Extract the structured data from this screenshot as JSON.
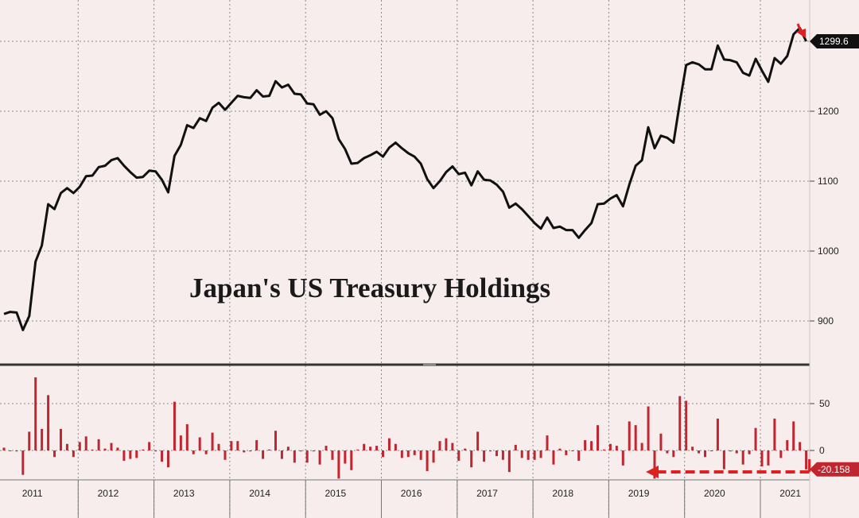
{
  "chart_data": [
    {
      "type": "line",
      "title": "Japan's US Treasury Holdings",
      "ylim": [
        870,
        1330
      ],
      "yticks": [
        900,
        1000,
        1100,
        1200
      ],
      "last_value_label": "1299.6",
      "colors": {
        "line": "#111111",
        "tag_background": "#111111",
        "arrow": "#e02020"
      },
      "grid": true,
      "points": [
        [
          "2011-01",
          910
        ],
        [
          "2011-02",
          913
        ],
        [
          "2011-03",
          912
        ],
        [
          "2011-04",
          887
        ],
        [
          "2011-05",
          907
        ],
        [
          "2011-06",
          985
        ],
        [
          "2011-07",
          1008
        ],
        [
          "2011-08",
          1067
        ],
        [
          "2011-09",
          1060
        ],
        [
          "2011-10",
          1083
        ],
        [
          "2011-11",
          1090
        ],
        [
          "2011-12",
          1083
        ],
        [
          "2012-01",
          1092
        ],
        [
          "2012-02",
          1107
        ],
        [
          "2012-03",
          1108
        ],
        [
          "2012-04",
          1120
        ],
        [
          "2012-05",
          1122
        ],
        [
          "2012-06",
          1130
        ],
        [
          "2012-07",
          1133
        ],
        [
          "2012-08",
          1122
        ],
        [
          "2012-09",
          1113
        ],
        [
          "2012-10",
          1105
        ],
        [
          "2012-11",
          1106
        ],
        [
          "2012-12",
          1115
        ],
        [
          "2013-01",
          1114
        ],
        [
          "2013-02",
          1102
        ],
        [
          "2013-03",
          1084
        ],
        [
          "2013-04",
          1136
        ],
        [
          "2013-05",
          1152
        ],
        [
          "2013-06",
          1180
        ],
        [
          "2013-07",
          1176
        ],
        [
          "2013-08",
          1190
        ],
        [
          "2013-09",
          1186
        ],
        [
          "2013-10",
          1205
        ],
        [
          "2013-11",
          1212
        ],
        [
          "2013-12",
          1202
        ],
        [
          "2014-01",
          1212
        ],
        [
          "2014-02",
          1222
        ],
        [
          "2014-03",
          1220
        ],
        [
          "2014-04",
          1219
        ],
        [
          "2014-05",
          1230
        ],
        [
          "2014-06",
          1221
        ],
        [
          "2014-07",
          1222
        ],
        [
          "2014-08",
          1243
        ],
        [
          "2014-09",
          1234
        ],
        [
          "2014-10",
          1238
        ],
        [
          "2014-11",
          1225
        ],
        [
          "2014-12",
          1224
        ],
        [
          "2015-01",
          1211
        ],
        [
          "2015-02",
          1210
        ],
        [
          "2015-03",
          1195
        ],
        [
          "2015-04",
          1200
        ],
        [
          "2015-05",
          1190
        ],
        [
          "2015-06",
          1160
        ],
        [
          "2015-07",
          1146
        ],
        [
          "2015-08",
          1125
        ],
        [
          "2015-09",
          1126
        ],
        [
          "2015-10",
          1133
        ],
        [
          "2015-11",
          1137
        ],
        [
          "2015-12",
          1142
        ],
        [
          "2016-01",
          1135
        ],
        [
          "2016-02",
          1148
        ],
        [
          "2016-03",
          1155
        ],
        [
          "2016-04",
          1147
        ],
        [
          "2016-05",
          1140
        ],
        [
          "2016-06",
          1135
        ],
        [
          "2016-07",
          1125
        ],
        [
          "2016-08",
          1103
        ],
        [
          "2016-09",
          1090
        ],
        [
          "2016-10",
          1100
        ],
        [
          "2016-11",
          1113
        ],
        [
          "2016-12",
          1121
        ],
        [
          "2017-01",
          1110
        ],
        [
          "2017-02",
          1112
        ],
        [
          "2017-03",
          1094
        ],
        [
          "2017-04",
          1114
        ],
        [
          "2017-05",
          1102
        ],
        [
          "2017-06",
          1101
        ],
        [
          "2017-07",
          1095
        ],
        [
          "2017-08",
          1085
        ],
        [
          "2017-09",
          1062
        ],
        [
          "2017-10",
          1068
        ],
        [
          "2017-11",
          1060
        ],
        [
          "2017-12",
          1050
        ],
        [
          "2018-01",
          1040
        ],
        [
          "2018-02",
          1032
        ],
        [
          "2018-03",
          1048
        ],
        [
          "2018-04",
          1033
        ],
        [
          "2018-05",
          1035
        ],
        [
          "2018-06",
          1030
        ],
        [
          "2018-07",
          1030
        ],
        [
          "2018-08",
          1019
        ],
        [
          "2018-09",
          1030
        ],
        [
          "2018-10",
          1040
        ],
        [
          "2018-11",
          1067
        ],
        [
          "2018-12",
          1068
        ],
        [
          "2019-01",
          1075
        ],
        [
          "2019-02",
          1080
        ],
        [
          "2019-03",
          1064
        ],
        [
          "2019-04",
          1095
        ],
        [
          "2019-05",
          1122
        ],
        [
          "2019-06",
          1130
        ],
        [
          "2019-07",
          1177
        ],
        [
          "2019-08",
          1147
        ],
        [
          "2019-09",
          1165
        ],
        [
          "2019-10",
          1162
        ],
        [
          "2019-11",
          1155
        ],
        [
          "2019-12",
          1213
        ],
        [
          "2020-01",
          1266
        ],
        [
          "2020-02",
          1270
        ],
        [
          "2020-03",
          1267
        ],
        [
          "2020-04",
          1260
        ],
        [
          "2020-05",
          1260
        ],
        [
          "2020-06",
          1294
        ],
        [
          "2020-07",
          1274
        ],
        [
          "2020-08",
          1273
        ],
        [
          "2020-09",
          1270
        ],
        [
          "2020-10",
          1255
        ],
        [
          "2020-11",
          1251
        ],
        [
          "2020-12",
          1275
        ],
        [
          "2021-01",
          1258
        ],
        [
          "2021-02",
          1242
        ],
        [
          "2021-03",
          1276
        ],
        [
          "2021-04",
          1268
        ],
        [
          "2021-05",
          1279
        ],
        [
          "2021-06",
          1310
        ],
        [
          "2021-07",
          1319
        ],
        [
          "2021-08",
          1300
        ]
      ]
    },
    {
      "type": "bar",
      "ylim": [
        -40,
        80
      ],
      "yticks": [
        50,
        0
      ],
      "last_value_label": "-20.158",
      "colors": {
        "bars": "#c0262f",
        "tag_background": "#c0262f",
        "highlight": "#e02020"
      },
      "grid": true,
      "highlight": "dashed arrow pointing left under the 2019–2021 bars",
      "points": [
        [
          "2011-01",
          3
        ],
        [
          "2011-02",
          0
        ],
        [
          "2011-03",
          -1
        ],
        [
          "2011-04",
          -26
        ],
        [
          "2011-05",
          20
        ],
        [
          "2011-06",
          78
        ],
        [
          "2011-07",
          23
        ],
        [
          "2011-08",
          59
        ],
        [
          "2011-09",
          -7
        ],
        [
          "2011-10",
          23
        ],
        [
          "2011-11",
          7
        ],
        [
          "2011-12",
          -7
        ],
        [
          "2012-01",
          9
        ],
        [
          "2012-02",
          15
        ],
        [
          "2012-03",
          1
        ],
        [
          "2012-04",
          12
        ],
        [
          "2012-05",
          2
        ],
        [
          "2012-06",
          8
        ],
        [
          "2012-07",
          3
        ],
        [
          "2012-08",
          -11
        ],
        [
          "2012-09",
          -9
        ],
        [
          "2012-10",
          -8
        ],
        [
          "2012-11",
          1
        ],
        [
          "2012-12",
          9
        ],
        [
          "2013-01",
          -1
        ],
        [
          "2013-02",
          -12
        ],
        [
          "2013-03",
          -18
        ],
        [
          "2013-04",
          52
        ],
        [
          "2013-05",
          16
        ],
        [
          "2013-06",
          28
        ],
        [
          "2013-07",
          -4
        ],
        [
          "2013-08",
          14
        ],
        [
          "2013-09",
          -4
        ],
        [
          "2013-10",
          19
        ],
        [
          "2013-11",
          7
        ],
        [
          "2013-12",
          -10
        ],
        [
          "2014-01",
          10
        ],
        [
          "2014-02",
          10
        ],
        [
          "2014-03",
          -2
        ],
        [
          "2014-04",
          -1
        ],
        [
          "2014-05",
          11
        ],
        [
          "2014-06",
          -9
        ],
        [
          "2014-07",
          1
        ],
        [
          "2014-08",
          21
        ],
        [
          "2014-09",
          -9
        ],
        [
          "2014-10",
          4
        ],
        [
          "2014-11",
          -13
        ],
        [
          "2014-12",
          -1
        ],
        [
          "2015-01",
          -13
        ],
        [
          "2015-02",
          -1
        ],
        [
          "2015-03",
          -15
        ],
        [
          "2015-04",
          5
        ],
        [
          "2015-05",
          -10
        ],
        [
          "2015-06",
          -30
        ],
        [
          "2015-07",
          -14
        ],
        [
          "2015-08",
          -21
        ],
        [
          "2015-09",
          1
        ],
        [
          "2015-10",
          7
        ],
        [
          "2015-11",
          4
        ],
        [
          "2015-12",
          5
        ],
        [
          "2016-01",
          -7
        ],
        [
          "2016-02",
          13
        ],
        [
          "2016-03",
          7
        ],
        [
          "2016-04",
          -8
        ],
        [
          "2016-05",
          -7
        ],
        [
          "2016-06",
          -5
        ],
        [
          "2016-07",
          -10
        ],
        [
          "2016-08",
          -22
        ],
        [
          "2016-09",
          -13
        ],
        [
          "2016-10",
          10
        ],
        [
          "2016-11",
          13
        ],
        [
          "2016-12",
          8
        ],
        [
          "2017-01",
          -11
        ],
        [
          "2017-02",
          2
        ],
        [
          "2017-03",
          -18
        ],
        [
          "2017-04",
          20
        ],
        [
          "2017-05",
          -12
        ],
        [
          "2017-06",
          -1
        ],
        [
          "2017-07",
          -6
        ],
        [
          "2017-08",
          -10
        ],
        [
          "2017-09",
          -23
        ],
        [
          "2017-10",
          6
        ],
        [
          "2017-11",
          -8
        ],
        [
          "2017-12",
          -10
        ],
        [
          "2018-01",
          -10
        ],
        [
          "2018-02",
          -8
        ],
        [
          "2018-03",
          16
        ],
        [
          "2018-04",
          -15
        ],
        [
          "2018-05",
          2
        ],
        [
          "2018-06",
          -5
        ],
        [
          "2018-07",
          0
        ],
        [
          "2018-08",
          -11
        ],
        [
          "2018-09",
          11
        ],
        [
          "2018-10",
          10
        ],
        [
          "2018-11",
          27
        ],
        [
          "2018-12",
          1
        ],
        [
          "2019-01",
          7
        ],
        [
          "2019-02",
          5
        ],
        [
          "2019-03",
          -16
        ],
        [
          "2019-04",
          31
        ],
        [
          "2019-05",
          27
        ],
        [
          "2019-06",
          8
        ],
        [
          "2019-07",
          47
        ],
        [
          "2019-08",
          -30
        ],
        [
          "2019-09",
          18
        ],
        [
          "2019-10",
          -3
        ],
        [
          "2019-11",
          -7
        ],
        [
          "2019-12",
          58
        ],
        [
          "2020-01",
          53
        ],
        [
          "2020-02",
          4
        ],
        [
          "2020-03",
          -3
        ],
        [
          "2020-04",
          -7
        ],
        [
          "2020-05",
          0
        ],
        [
          "2020-06",
          34
        ],
        [
          "2020-07",
          -20
        ],
        [
          "2020-08",
          -1
        ],
        [
          "2020-09",
          -3
        ],
        [
          "2020-10",
          -15
        ],
        [
          "2020-11",
          -4
        ],
        [
          "2020-12",
          24
        ],
        [
          "2021-01",
          -17
        ],
        [
          "2021-02",
          -16
        ],
        [
          "2021-03",
          34
        ],
        [
          "2021-04",
          -8
        ],
        [
          "2021-05",
          11
        ],
        [
          "2021-06",
          31
        ],
        [
          "2021-07",
          9
        ],
        [
          "2021-08",
          -20.158
        ]
      ]
    }
  ],
  "x_axis": {
    "years": [
      "2011",
      "2012",
      "2013",
      "2014",
      "2015",
      "2016",
      "2017",
      "2018",
      "2019",
      "2020",
      "2021"
    ]
  }
}
